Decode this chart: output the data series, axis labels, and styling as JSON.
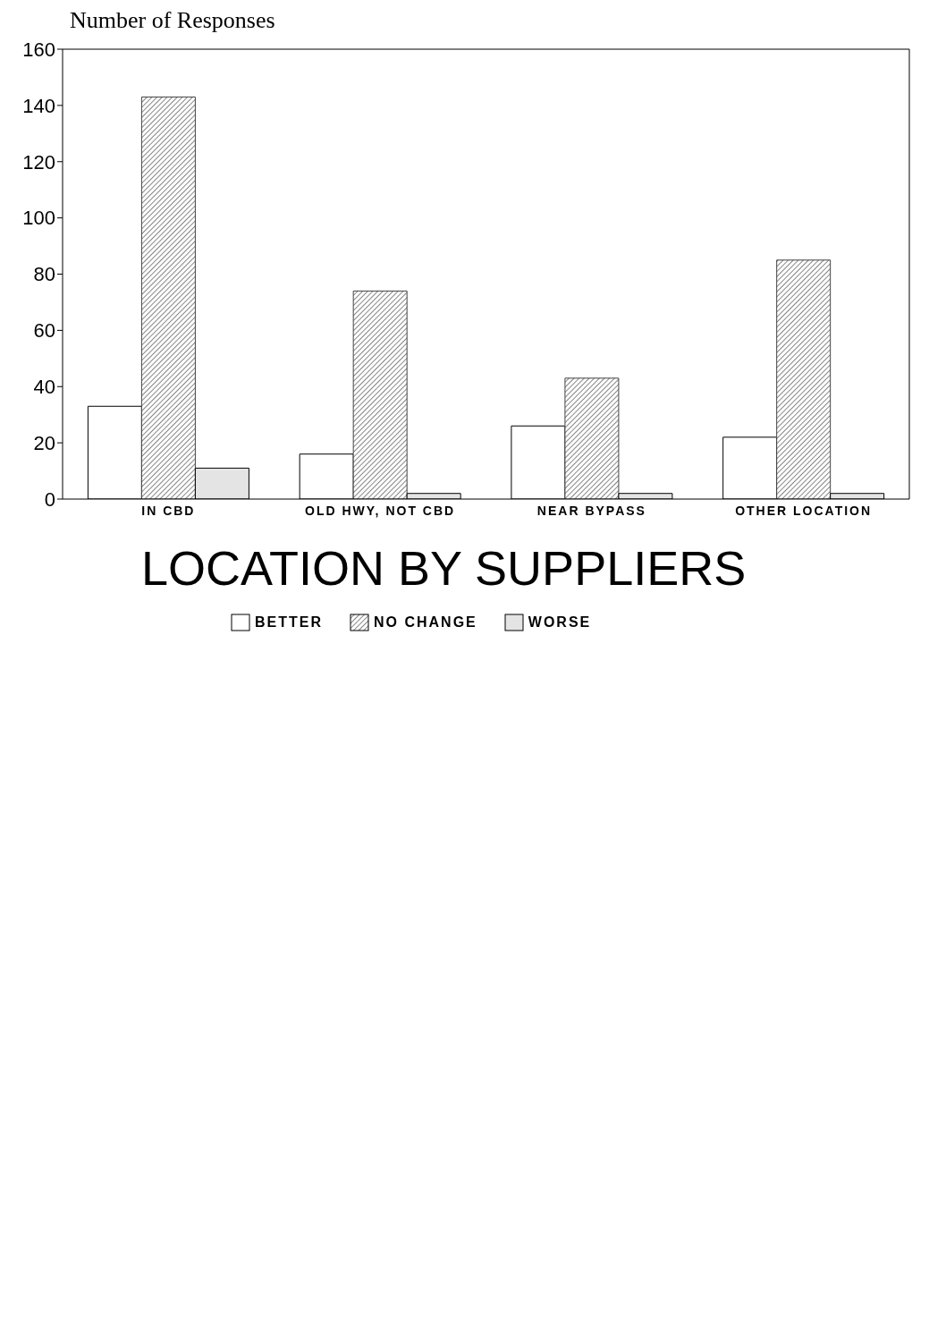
{
  "chart_data": {
    "type": "bar",
    "title": "LOCATION BY SUPPLIERS",
    "ylabel": "Number of Responses",
    "categories": [
      "IN CBD",
      "OLD HWY, NOT CBD",
      "NEAR BYPASS",
      "OTHER LOCATION"
    ],
    "series": [
      {
        "name": "BETTER",
        "color": "#ffffff",
        "values": [
          33,
          16,
          26,
          22
        ]
      },
      {
        "name": "NO CHANGE",
        "color": "#444444",
        "values": [
          143,
          74,
          43,
          85
        ]
      },
      {
        "name": "WORSE",
        "color": "#e4e4e4",
        "values": [
          11,
          2,
          2,
          2
        ]
      }
    ],
    "ylim": [
      0,
      160
    ],
    "yticks": [
      0,
      20,
      40,
      60,
      80,
      100,
      120,
      140,
      160
    ],
    "legend": "bottom"
  }
}
